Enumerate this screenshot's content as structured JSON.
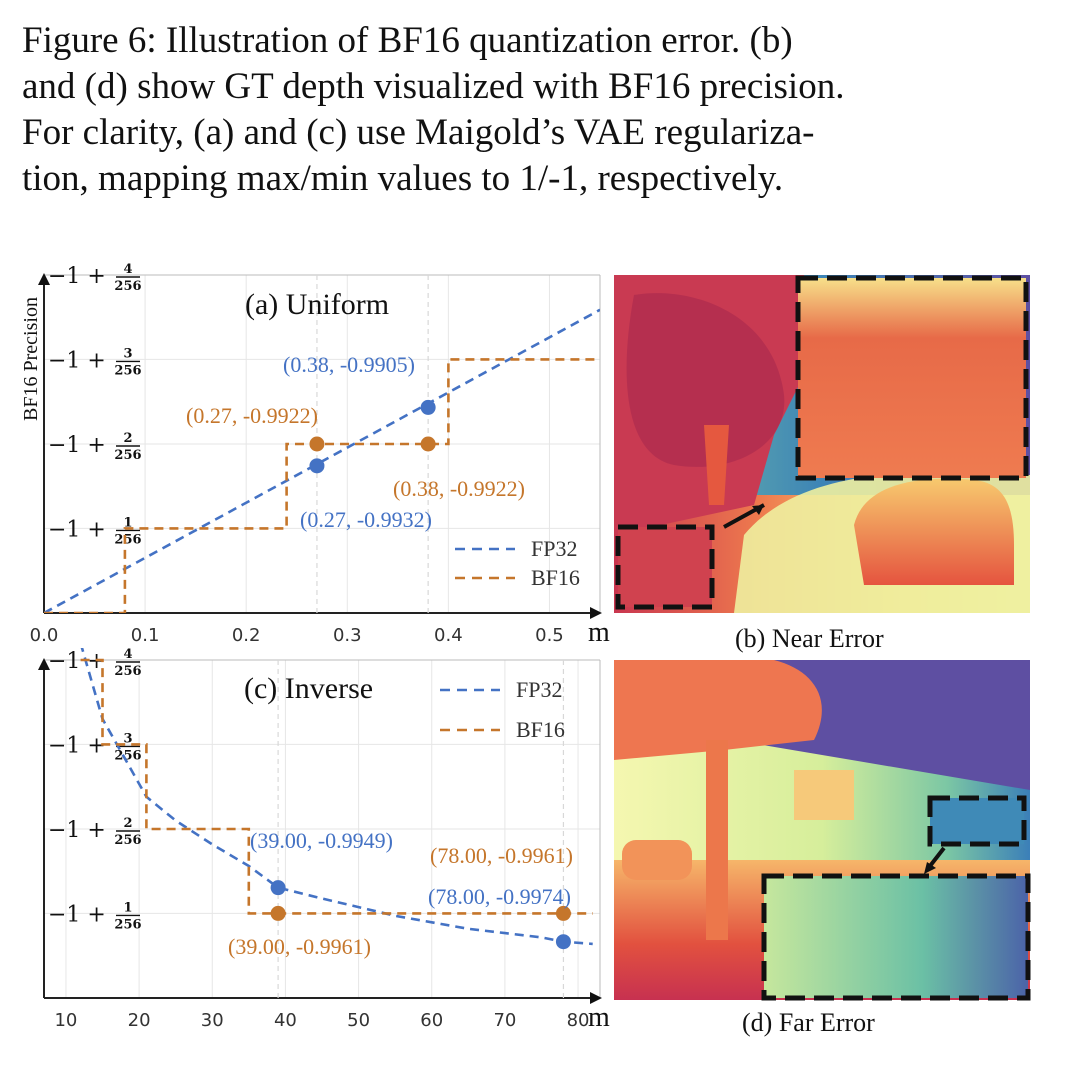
{
  "caption": {
    "lines": [
      "Figure 6: Illustration of BF16 quantization error. (b)",
      "and (d) show GT depth visualized with BF16 precision.",
      "For clarity, (a) and (c) use Maigold’s VAE regulariza-",
      "tion, mapping max/min values to 1/-1, respectively."
    ]
  },
  "colors": {
    "fp32": "#4472c4",
    "bf16": "#c5762b"
  },
  "chart_data": [
    {
      "type": "line",
      "title": "(a) Uniform",
      "ylabel": "BF16 Precision",
      "xunit": "m",
      "xlim": [
        0,
        0.55
      ],
      "xticks": [
        "0.0",
        "0.1",
        "0.2",
        "0.3",
        "0.4",
        "0.5"
      ],
      "ylim": [
        -1.0,
        -0.98438
      ],
      "yticks": [
        {
          "main": "−1 +",
          "num": "1",
          "den": "256",
          "value": -0.99609
        },
        {
          "main": "−1 +",
          "num": "2",
          "den": "256",
          "value": -0.99219
        },
        {
          "main": "−1 +",
          "num": "3",
          "den": "256",
          "value": -0.98828
        },
        {
          "main": "−1 +",
          "num": "4",
          "den": "256",
          "value": -0.98438
        }
      ],
      "legend": {
        "position": "bottom-right",
        "entries": [
          "FP32",
          "BF16"
        ]
      },
      "series": [
        {
          "name": "FP32",
          "style": "dashed",
          "x": [
            0.0,
            0.55
          ],
          "y": [
            -1.0,
            -0.98599
          ]
        },
        {
          "name": "BF16",
          "style": "dashed-step",
          "x": [
            0.0,
            0.08,
            0.08,
            0.24,
            0.24,
            0.4,
            0.4,
            0.55
          ],
          "y": [
            -1.0,
            -1.0,
            -0.99609,
            -0.99609,
            -0.99219,
            -0.99219,
            -0.98828,
            -0.98828
          ]
        }
      ],
      "points": [
        {
          "series": "FP32",
          "x": 0.38,
          "y": -0.9905,
          "label": "(0.38, -0.9905)"
        },
        {
          "series": "BF16",
          "x": 0.27,
          "y": -0.99219,
          "label": "(0.27, -0.9922)"
        },
        {
          "series": "BF16",
          "x": 0.38,
          "y": -0.99219,
          "label": "(0.38, -0.9922)"
        },
        {
          "series": "FP32",
          "x": 0.27,
          "y": -0.9932,
          "label": "(0.27, -0.9932)"
        }
      ]
    },
    {
      "type": "line",
      "title": "(c) Inverse",
      "xunit": "m",
      "xlim": [
        7,
        83
      ],
      "xticks": [
        "10",
        "20",
        "30",
        "40",
        "50",
        "60",
        "70",
        "80"
      ],
      "ylim": [
        -1.0,
        -0.98438
      ],
      "yticks": [
        {
          "main": "−1 +",
          "num": "1",
          "den": "256",
          "value": -0.99609
        },
        {
          "main": "−1 +",
          "num": "2",
          "den": "256",
          "value": -0.99219
        },
        {
          "main": "−1 +",
          "num": "3",
          "den": "256",
          "value": -0.98828
        },
        {
          "main": "−1 +",
          "num": "4",
          "den": "256",
          "value": -0.98438
        }
      ],
      "legend": {
        "position": "top-right",
        "entries": [
          "FP32",
          "BF16"
        ]
      },
      "series": [
        {
          "name": "FP32",
          "style": "dashed",
          "x": [
            12,
            15,
            18,
            21,
            25,
            30,
            35,
            39,
            45,
            50,
            55,
            60,
            65,
            70,
            75,
            78,
            82
          ],
          "y": [
            -0.9836,
            -0.9871,
            -0.9889,
            -0.9907,
            -0.9918,
            -0.9929,
            -0.9939,
            -0.9949,
            -0.9954,
            -0.9958,
            -0.9962,
            -0.9965,
            -0.9968,
            -0.997,
            -0.9972,
            -0.9974,
            -0.9975
          ]
        },
        {
          "name": "BF16",
          "style": "dashed-step",
          "x": [
            12,
            15,
            15,
            21,
            21,
            35,
            35,
            82
          ],
          "y": [
            -0.98438,
            -0.98438,
            -0.98828,
            -0.98828,
            -0.99219,
            -0.99219,
            -0.99609,
            -0.99609
          ]
        }
      ],
      "points": [
        {
          "series": "FP32",
          "x": 39,
          "y": -0.9949,
          "label": "(39.00, -0.9949)"
        },
        {
          "series": "BF16",
          "x": 78,
          "y": -0.99609,
          "label": "(78.00, -0.9961)"
        },
        {
          "series": "FP32",
          "x": 78,
          "y": -0.9974,
          "label": "(78.00, -0.9974)"
        },
        {
          "series": "BF16",
          "x": 39,
          "y": -0.99609,
          "label": "(39.00, -0.9961)"
        }
      ]
    }
  ],
  "images": {
    "b": {
      "caption": "(b) Near Error"
    },
    "d": {
      "caption": "(d) Far Error"
    }
  }
}
